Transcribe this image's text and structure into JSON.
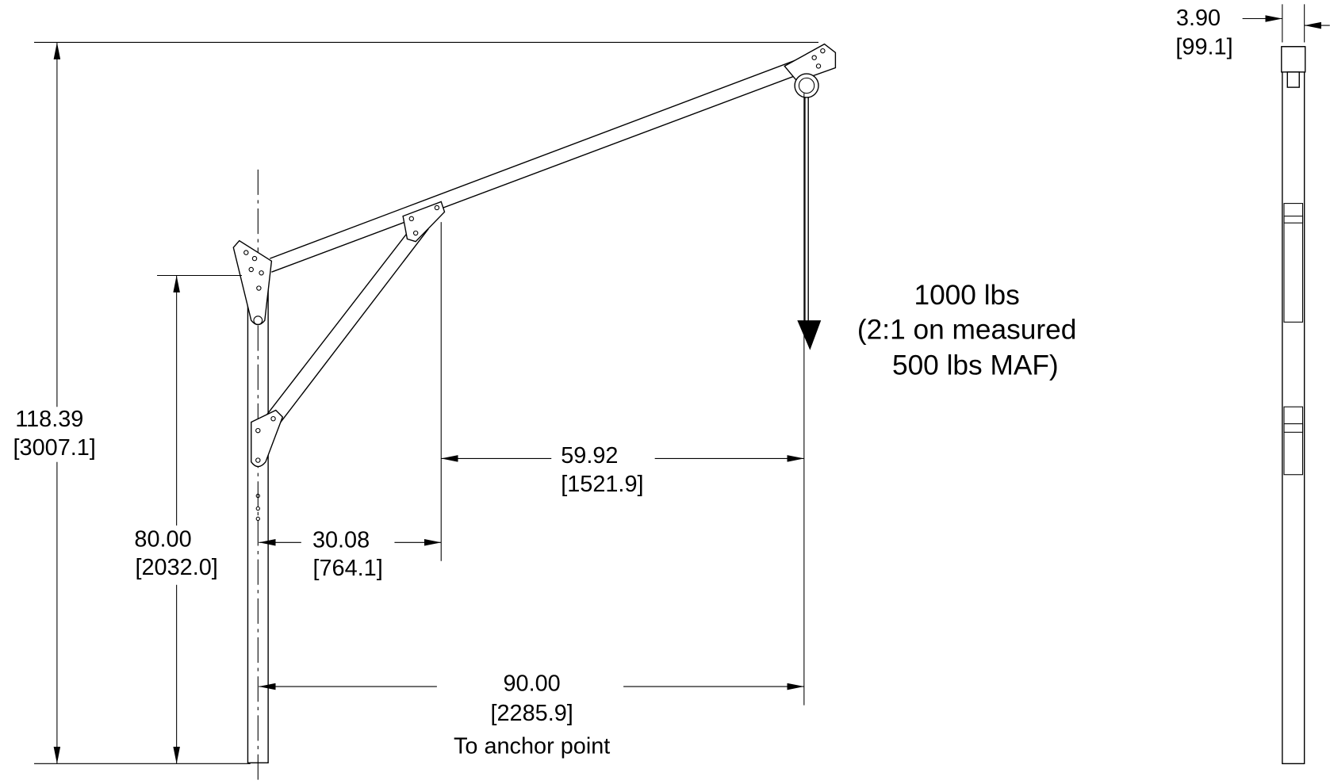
{
  "dimensions": {
    "overall_height": {
      "inches": "118.39",
      "mm": "[3007.1]"
    },
    "mast_height": {
      "inches": "80.00",
      "mm": "[2032.0]"
    },
    "strut_offset": {
      "inches": "30.08",
      "mm": "[764.1]"
    },
    "strut_to_load": {
      "inches": "59.92",
      "mm": "[1521.9]"
    },
    "reach": {
      "inches": "90.00",
      "mm": "[2285.9]",
      "note": "To anchor point"
    },
    "side_width": {
      "inches": "3.90",
      "mm": "[99.1]"
    }
  },
  "load": {
    "lines": [
      "1000 lbs",
      "(2:1 on measured",
      "500 lbs MAF)"
    ]
  }
}
